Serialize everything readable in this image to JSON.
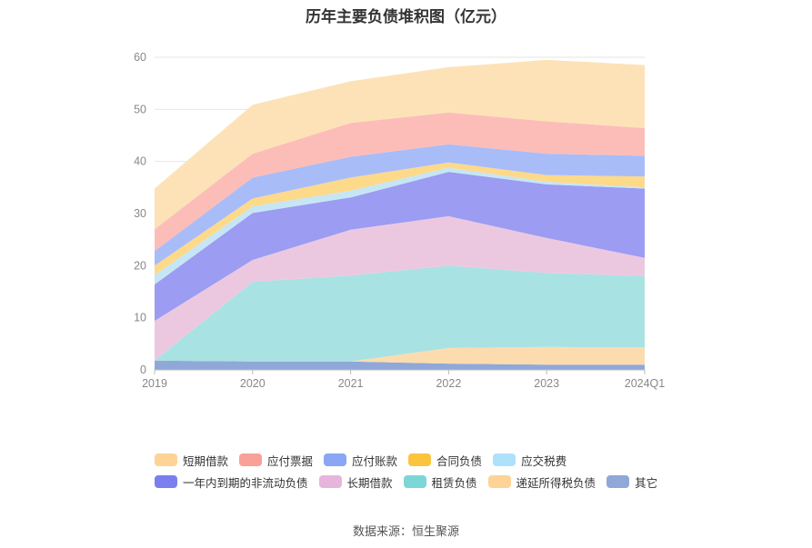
{
  "chart_data": {
    "type": "area",
    "stacked": true,
    "title": "历年主要负债堆积图（亿元）",
    "categories": [
      "2019",
      "2020",
      "2021",
      "2022",
      "2023",
      "2024Q1"
    ],
    "ylim": [
      0,
      60
    ],
    "yticks": [
      0,
      10,
      20,
      30,
      40,
      50,
      60
    ],
    "grid": true,
    "legend_position": "bottom",
    "series": [
      {
        "name": "其它",
        "color": "#8fa8d8",
        "values": [
          1.8,
          1.6,
          1.6,
          1.2,
          1.0,
          1.0
        ]
      },
      {
        "name": "递延所得税负债",
        "color": "#fcdcae",
        "values": [
          0.0,
          0.0,
          0.0,
          3.0,
          3.4,
          3.3
        ]
      },
      {
        "name": "租赁负债",
        "color": "#a9e2e2",
        "values": [
          0.0,
          15.3,
          16.5,
          15.8,
          14.2,
          13.7
        ]
      },
      {
        "name": "长期借款",
        "color": "#ecc8e0",
        "values": [
          7.6,
          4.2,
          8.8,
          9.5,
          6.7,
          3.5
        ]
      },
      {
        "name": "一年内到期的非流动负债",
        "color": "#9b9cf2",
        "values": [
          7.0,
          9.0,
          6.2,
          8.5,
          10.3,
          13.3
        ]
      },
      {
        "name": "应交税费",
        "color": "#c6e6f5",
        "values": [
          1.8,
          1.3,
          1.3,
          0.8,
          0.5,
          0.2
        ]
      },
      {
        "name": "合同负债",
        "color": "#fdd98a",
        "values": [
          1.8,
          1.5,
          2.5,
          1.0,
          1.3,
          2.1
        ]
      },
      {
        "name": "应付账款",
        "color": "#a8bcf8",
        "values": [
          2.8,
          4.0,
          4.0,
          3.5,
          4.1,
          4.0
        ]
      },
      {
        "name": "应付票据",
        "color": "#fcbdb8",
        "values": [
          4.2,
          4.6,
          6.5,
          6.1,
          6.2,
          5.3
        ]
      },
      {
        "name": "短期借款",
        "color": "#fde2b7",
        "values": [
          7.8,
          9.4,
          8.0,
          8.7,
          11.8,
          12.1
        ]
      }
    ]
  },
  "legend": {
    "rows": [
      [
        {
          "label": "短期借款",
          "color": "#fdd396"
        },
        {
          "label": "应付票据",
          "color": "#f9a197"
        },
        {
          "label": "应付账款",
          "color": "#8aa6f5"
        },
        {
          "label": "合同负债",
          "color": "#fcc43c"
        },
        {
          "label": "应交税费",
          "color": "#aee1fa"
        }
      ],
      [
        {
          "label": "一年内到期的非流动负债",
          "color": "#7c7ef0"
        },
        {
          "label": "长期借款",
          "color": "#e6b5dc"
        },
        {
          "label": "租赁负债",
          "color": "#7dd6d6"
        },
        {
          "label": "递延所得税负债",
          "color": "#fdd396"
        },
        {
          "label": "其它",
          "color": "#8fa8d8"
        }
      ]
    ]
  },
  "source": "数据来源：恒生聚源"
}
